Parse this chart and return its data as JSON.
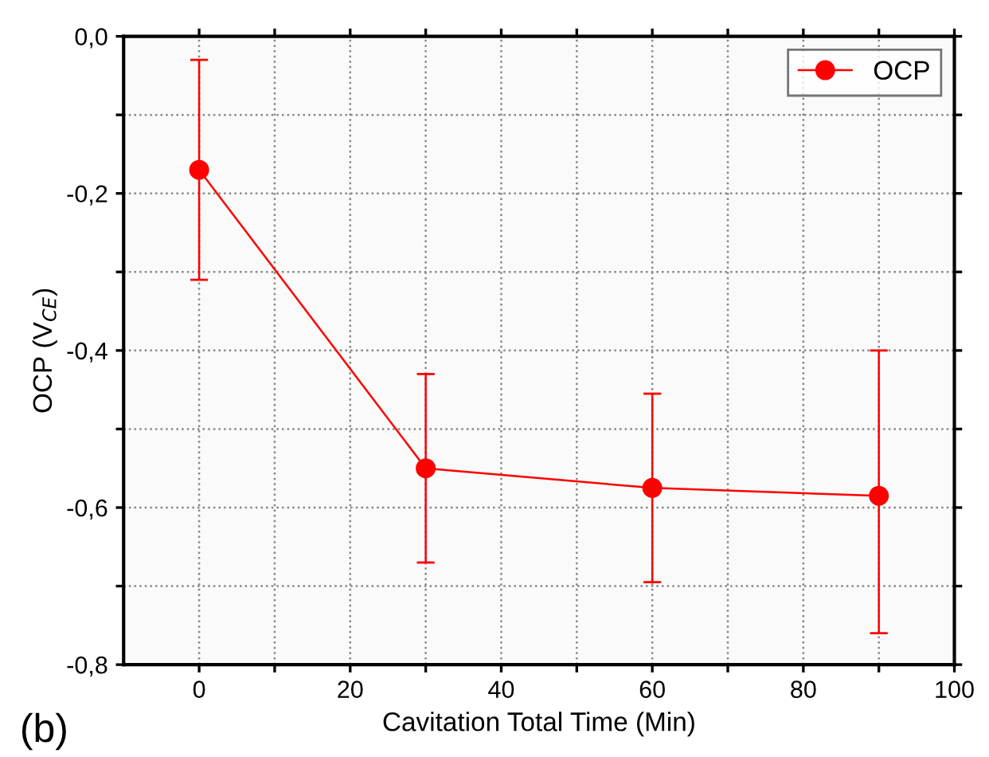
{
  "chart_data": {
    "type": "line",
    "xlabel": "Cavitation Total Time (Min)",
    "ylabel": "OCP (V$_{CE}$)",
    "x": [
      0,
      30,
      60,
      90
    ],
    "series": [
      {
        "name": "OCP",
        "color": "#ff0000",
        "values": [
          -0.17,
          -0.55,
          -0.575,
          -0.585
        ],
        "errors": [
          [
            -0.31,
            -0.03
          ],
          [
            -0.67,
            -0.43
          ],
          [
            -0.695,
            -0.455
          ],
          [
            -0.76,
            -0.4
          ]
        ]
      }
    ],
    "xlim": [
      -10,
      100
    ],
    "xticks": [
      0,
      {
        "value": 10,
        "label": null
      },
      20,
      {
        "value": 30,
        "label": null
      },
      40,
      {
        "value": 50,
        "label": null
      },
      60,
      {
        "value": 70,
        "label": null
      },
      80,
      {
        "value": 90,
        "label": null
      },
      100
    ],
    "ylim": [
      -0.8,
      0
    ],
    "yticks": [
      {
        "value": -0.8,
        "label": "-0,8"
      },
      {
        "value": -0.7,
        "label": null
      },
      {
        "value": -0.6,
        "label": "-0,6"
      },
      {
        "value": -0.5,
        "label": null
      },
      {
        "value": -0.4,
        "label": "-0,4"
      },
      {
        "value": -0.3,
        "label": null
      },
      {
        "value": -0.2,
        "label": "-0,2"
      },
      {
        "value": -0.1,
        "label": null
      },
      {
        "value": 0,
        "label": "0,0"
      }
    ],
    "grid": true,
    "legend": "top right",
    "marker": "circle",
    "line_style": "solid",
    "annotations": [
      "(b)"
    ]
  }
}
